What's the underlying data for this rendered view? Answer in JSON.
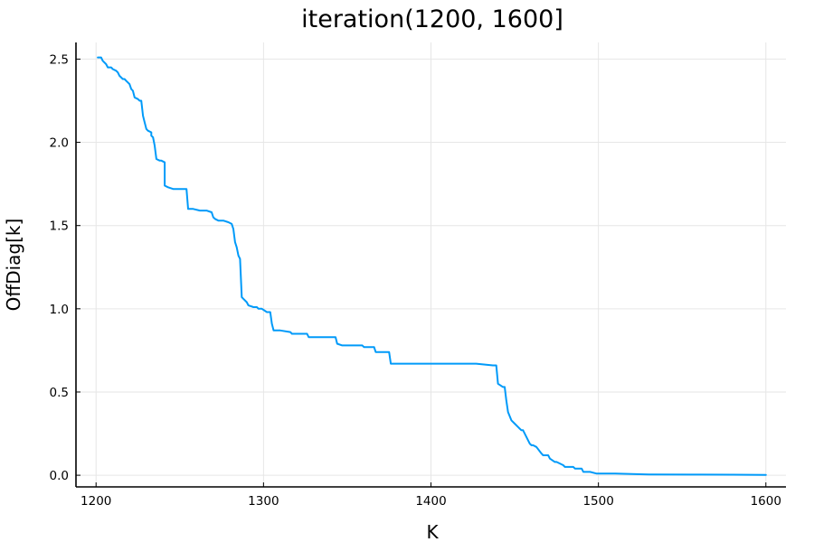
{
  "chart_data": {
    "type": "line",
    "title": "iteration(1200, 1600]",
    "xlabel": "K",
    "ylabel": "OffDiag[k]",
    "xlim": [
      1188,
      1612
    ],
    "ylim": [
      -0.07,
      2.6
    ],
    "x_ticks": [
      1200,
      1300,
      1400,
      1500,
      1600
    ],
    "x_tick_labels": [
      "1200",
      "1300",
      "1400",
      "1500",
      "1600"
    ],
    "y_ticks": [
      0.0,
      0.5,
      1.0,
      1.5,
      2.0,
      2.5
    ],
    "y_tick_labels": [
      "0.0",
      "0.5",
      "1.0",
      "1.5",
      "2.0",
      "2.5"
    ],
    "grid": true,
    "legend": "none",
    "series": [
      {
        "color": "#009af9",
        "x": [
          1201,
          1203,
          1204,
          1206,
          1207,
          1209,
          1210,
          1212,
          1213,
          1214,
          1216,
          1217,
          1218,
          1220,
          1221,
          1222,
          1223,
          1225,
          1226,
          1227,
          1228,
          1229,
          1230,
          1231,
          1233,
          1233,
          1234,
          1235,
          1236,
          1238,
          1239,
          1241,
          1241,
          1243,
          1246,
          1249,
          1252,
          1254,
          1255,
          1258,
          1262,
          1266,
          1269,
          1270,
          1271,
          1273,
          1276,
          1279,
          1281,
          1282,
          1283,
          1284,
          1285,
          1286,
          1287,
          1288,
          1290,
          1291,
          1294,
          1296,
          1297,
          1299,
          1302,
          1304,
          1305,
          1306,
          1310,
          1316,
          1317,
          1322,
          1326,
          1327,
          1330,
          1336,
          1343,
          1344,
          1347,
          1353,
          1359,
          1360,
          1364,
          1366,
          1367,
          1370,
          1375,
          1376,
          1382,
          1391,
          1400,
          1413,
          1427,
          1437,
          1439,
          1440,
          1443,
          1444,
          1445,
          1446,
          1448,
          1450,
          1452,
          1453,
          1454,
          1455,
          1459,
          1460,
          1461,
          1463,
          1466,
          1467,
          1470,
          1471,
          1474,
          1475,
          1479,
          1480,
          1485,
          1486,
          1490,
          1491,
          1494,
          1495,
          1499,
          1510,
          1530,
          1560,
          1580,
          1600
        ],
        "y": [
          2.51,
          2.51,
          2.49,
          2.47,
          2.45,
          2.45,
          2.44,
          2.43,
          2.42,
          2.4,
          2.38,
          2.38,
          2.37,
          2.35,
          2.32,
          2.31,
          2.27,
          2.26,
          2.25,
          2.25,
          2.16,
          2.12,
          2.08,
          2.07,
          2.06,
          2.04,
          2.03,
          1.98,
          1.9,
          1.89,
          1.89,
          1.88,
          1.74,
          1.73,
          1.72,
          1.72,
          1.72,
          1.72,
          1.6,
          1.6,
          1.59,
          1.59,
          1.58,
          1.55,
          1.54,
          1.53,
          1.53,
          1.52,
          1.51,
          1.48,
          1.4,
          1.37,
          1.32,
          1.3,
          1.07,
          1.06,
          1.04,
          1.02,
          1.01,
          1.01,
          1.0,
          1.0,
          0.98,
          0.98,
          0.91,
          0.87,
          0.87,
          0.86,
          0.85,
          0.85,
          0.85,
          0.83,
          0.83,
          0.83,
          0.83,
          0.79,
          0.78,
          0.78,
          0.78,
          0.77,
          0.77,
          0.77,
          0.74,
          0.74,
          0.74,
          0.67,
          0.67,
          0.67,
          0.67,
          0.67,
          0.67,
          0.66,
          0.66,
          0.55,
          0.53,
          0.53,
          0.45,
          0.38,
          0.33,
          0.31,
          0.29,
          0.28,
          0.27,
          0.27,
          0.19,
          0.18,
          0.18,
          0.17,
          0.13,
          0.12,
          0.12,
          0.1,
          0.08,
          0.08,
          0.06,
          0.05,
          0.05,
          0.04,
          0.04,
          0.02,
          0.02,
          0.02,
          0.01,
          0.01,
          0.005,
          0.004,
          0.003,
          0.002
        ]
      }
    ]
  }
}
